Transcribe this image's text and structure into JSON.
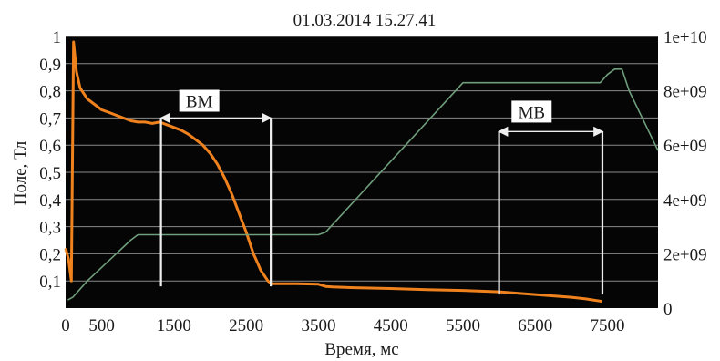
{
  "chart_data": {
    "type": "line",
    "title": "01.03.2014  15.27.41",
    "xlabel": "Время, мс",
    "ylabel": "Поле, Тл",
    "y2label": "",
    "xlim": [
      0,
      8200
    ],
    "ylim": [
      0,
      1
    ],
    "y2lim": [
      0,
      10000000000
    ],
    "x_ticks": [
      0,
      500,
      1500,
      2500,
      3500,
      4500,
      5500,
      6500,
      7500
    ],
    "x_tick_labels": [
      "0",
      "500",
      "1500",
      "2500",
      "3500",
      "4500",
      "5500",
      "6500",
      "7500"
    ],
    "y_ticks": [
      0.1,
      0.2,
      0.3,
      0.4,
      0.5,
      0.6,
      0.7,
      0.8,
      0.9,
      1
    ],
    "y_tick_labels": [
      "0,1",
      "0,2",
      "0,3",
      "0,4",
      "0,5",
      "0,6",
      "0,7",
      "0,8",
      "0,9",
      "1"
    ],
    "y2_ticks": [
      0,
      2000000000,
      4000000000,
      6000000000,
      8000000000,
      10000000000
    ],
    "y2_tick_labels": [
      "0",
      "2e+09",
      "4e+09",
      "6e+09",
      "8e+09",
      "1e+10"
    ],
    "grid": true,
    "background": "#050505",
    "series": [
      {
        "axis": "left",
        "color": "#f0821e",
        "x": [
          0,
          40,
          80,
          110,
          150,
          200,
          300,
          400,
          500,
          600,
          700,
          800,
          900,
          1000,
          1100,
          1200,
          1300,
          1400,
          1500,
          1600,
          1700,
          1800,
          1900,
          2000,
          2100,
          2200,
          2300,
          2400,
          2500,
          2550,
          2600,
          2650,
          2700,
          2750,
          2800,
          2850,
          2900,
          3000,
          3200,
          3500,
          3600,
          3700,
          4000,
          4500,
          5000,
          5500,
          6000,
          6500,
          7000,
          7200,
          7300,
          7400,
          7420
        ],
        "y": [
          0.22,
          0.18,
          0.1,
          0.98,
          0.87,
          0.81,
          0.77,
          0.75,
          0.73,
          0.72,
          0.71,
          0.7,
          0.69,
          0.685,
          0.685,
          0.68,
          0.685,
          0.675,
          0.665,
          0.655,
          0.64,
          0.62,
          0.6,
          0.57,
          0.53,
          0.48,
          0.42,
          0.35,
          0.28,
          0.24,
          0.2,
          0.17,
          0.14,
          0.12,
          0.1,
          0.09,
          0.09,
          0.09,
          0.09,
          0.088,
          0.08,
          0.078,
          0.075,
          0.072,
          0.068,
          0.065,
          0.06,
          0.05,
          0.04,
          0.034,
          0.03,
          0.026,
          0.025
        ]
      },
      {
        "axis": "right",
        "color": "#6f9e7c",
        "x": [
          30,
          100,
          300,
          500,
          700,
          900,
          1000,
          1100,
          3500,
          3600,
          5500,
          7400,
          7500,
          7600,
          7700,
          7800,
          8200
        ],
        "y": [
          300000000,
          400000000,
          1000000000,
          1500000000,
          2000000000,
          2500000000,
          2700000000,
          2700000000,
          2700000000,
          2800000000,
          8300000000,
          8300000000,
          8600000000,
          8800000000,
          8800000000,
          8000000000,
          5800000000
        ]
      }
    ],
    "annotations": [
      {
        "text": "ВМ",
        "x": 1850,
        "y": 0.76
      },
      {
        "text": "МВ",
        "x": 6450,
        "y": 0.72
      }
    ],
    "markers": [
      {
        "x": 1320,
        "y_from": 0.08,
        "y_to": 0.7
      },
      {
        "x": 2840,
        "y_from": 0.08,
        "y_to": 0.7
      },
      {
        "x": 6000,
        "y_from": 0.05,
        "y_to": 0.65
      },
      {
        "x": 7430,
        "y_from": 0.05,
        "y_to": 0.65
      }
    ],
    "arrows": [
      {
        "x_from": 1320,
        "x_to": 2840,
        "y": 0.7
      },
      {
        "x_from": 6000,
        "x_to": 7430,
        "y": 0.65
      }
    ],
    "marker_color": "#eeeeee",
    "grid_color": "#8a8a8a"
  }
}
